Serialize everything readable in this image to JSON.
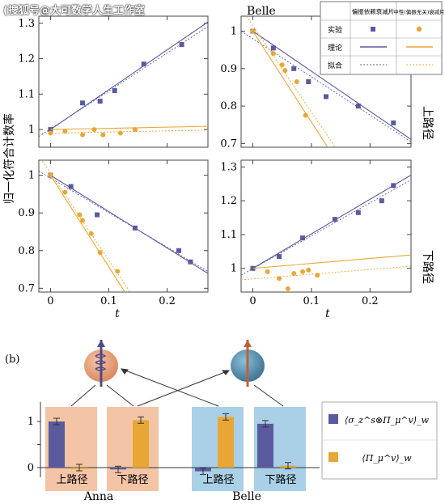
{
  "watermark": "(搜狐号@大可数学人生工作室",
  "panel_a": {
    "ylabel": "归一化符合计数率",
    "xlabel": "t",
    "col_titles": [
      "",
      "Belle"
    ],
    "row_titles": [
      "上路径",
      "下路径"
    ],
    "legend": {
      "col_headers": [
        "偏振依赖衰减片",
        "中性(偏振无关)衰减片"
      ],
      "rows": [
        "实验",
        "理论",
        "拟合"
      ]
    }
  },
  "panel_b": {
    "label": "(b)",
    "groups": [
      "Anna",
      "Belle"
    ],
    "path_labels": [
      "上路径",
      "下路径",
      "上路径",
      "下路径"
    ],
    "legend": [
      "⟨σ_z^s⊗Π_μ^v⟩_w",
      "⟨Π_μ^v⟩_w"
    ]
  },
  "colors": {
    "blue": "#5a5a9e",
    "orange": "#e8a735",
    "anna_bg": "#f3c4a6",
    "belle_bg": "#a9d0e6"
  },
  "chart_data": [
    {
      "type": "scatter",
      "panel": "top-left",
      "ylim": [
        0.95,
        1.32
      ],
      "xlim": [
        -0.02,
        0.27
      ],
      "yticks": [
        "1",
        "1.1",
        "1.2",
        "1.3"
      ],
      "series": [
        {
          "name": "偏振依赖衰减片",
          "x": [
            0.0,
            0.055,
            0.085,
            0.11,
            0.16,
            0.225
          ],
          "y": [
            1.0,
            1.075,
            1.08,
            1.11,
            1.185,
            1.24
          ]
        },
        {
          "name": "中性(偏振无关)衰减片",
          "x": [
            0.0,
            0.025,
            0.055,
            0.075,
            0.09,
            0.12,
            0.145
          ],
          "y": [
            0.99,
            0.995,
            0.985,
            1.0,
            0.985,
            0.99,
            1.0
          ]
        }
      ]
    },
    {
      "type": "scatter",
      "panel": "top-right",
      "title": "Belle",
      "ylim": [
        0.69,
        1.04
      ],
      "xlim": [
        -0.02,
        0.27
      ],
      "yticks": [
        "0.7",
        "0.8",
        "0.9",
        "1"
      ],
      "series": [
        {
          "name": "偏振依赖衰减片",
          "x": [
            0.0,
            0.035,
            0.07,
            0.095,
            0.125,
            0.18,
            0.24
          ],
          "y": [
            1.0,
            0.955,
            0.9,
            0.865,
            0.825,
            0.8,
            0.755
          ]
        },
        {
          "name": "中性(偏振无关)衰减片",
          "x": [
            0.0,
            0.035,
            0.05,
            0.055,
            0.075,
            0.09
          ],
          "y": [
            1.0,
            0.94,
            0.91,
            0.895,
            0.865,
            0.775
          ]
        }
      ]
    },
    {
      "type": "scatter",
      "panel": "bottom-left",
      "ylim": [
        0.69,
        1.04
      ],
      "xlim": [
        -0.02,
        0.27
      ],
      "xticks": [
        "0",
        "0.1",
        "0.2"
      ],
      "yticks": [
        "0.7",
        "0.8",
        "0.9",
        "1"
      ],
      "series": [
        {
          "name": "偏振依赖衰减片",
          "x": [
            0.0,
            0.035,
            0.08,
            0.145,
            0.22,
            0.24
          ],
          "y": [
            1.0,
            0.97,
            0.895,
            0.86,
            0.8,
            0.77
          ]
        },
        {
          "name": "中性(偏振无关)衰减片",
          "x": [
            0.0,
            0.025,
            0.05,
            0.055,
            0.07,
            0.085,
            0.115
          ],
          "y": [
            1.0,
            0.955,
            0.895,
            0.88,
            0.845,
            0.795,
            0.745
          ]
        }
      ]
    },
    {
      "type": "scatter",
      "panel": "bottom-right",
      "ylim": [
        0.93,
        1.32
      ],
      "xlim": [
        -0.02,
        0.27
      ],
      "xticks": [
        "0",
        "0.1",
        "0.2"
      ],
      "yticks": [
        "1",
        "1.1",
        "1.2",
        "1.3"
      ],
      "series": [
        {
          "name": "偏振依赖衰减片",
          "x": [
            0.0,
            0.045,
            0.085,
            0.14,
            0.18,
            0.22,
            0.24
          ],
          "y": [
            1.0,
            1.035,
            1.09,
            1.145,
            1.165,
            1.2,
            1.245
          ]
        },
        {
          "name": "中性(偏振无关)衰减片",
          "x": [
            0.025,
            0.045,
            0.06,
            0.07,
            0.085,
            0.095,
            0.11
          ],
          "y": [
            0.99,
            0.97,
            0.94,
            0.985,
            0.99,
            0.995,
            0.98
          ]
        }
      ]
    },
    {
      "type": "bar",
      "panel": "b",
      "categories": [
        "Anna 上路径",
        "Anna 下路径",
        "Belle 上路径",
        "Belle 下路径"
      ],
      "yticks": [
        "0",
        "1"
      ],
      "ylim": [
        -0.15,
        1.3
      ],
      "series": [
        {
          "name": "⟨σ_z^s⊗Π_μ^v⟩_w",
          "values": [
            1.0,
            -0.04,
            -0.08,
            0.95
          ]
        },
        {
          "name": "⟨Π_μ^v⟩_w",
          "values": [
            0.0,
            1.03,
            1.1,
            0.04
          ]
        }
      ]
    }
  ]
}
